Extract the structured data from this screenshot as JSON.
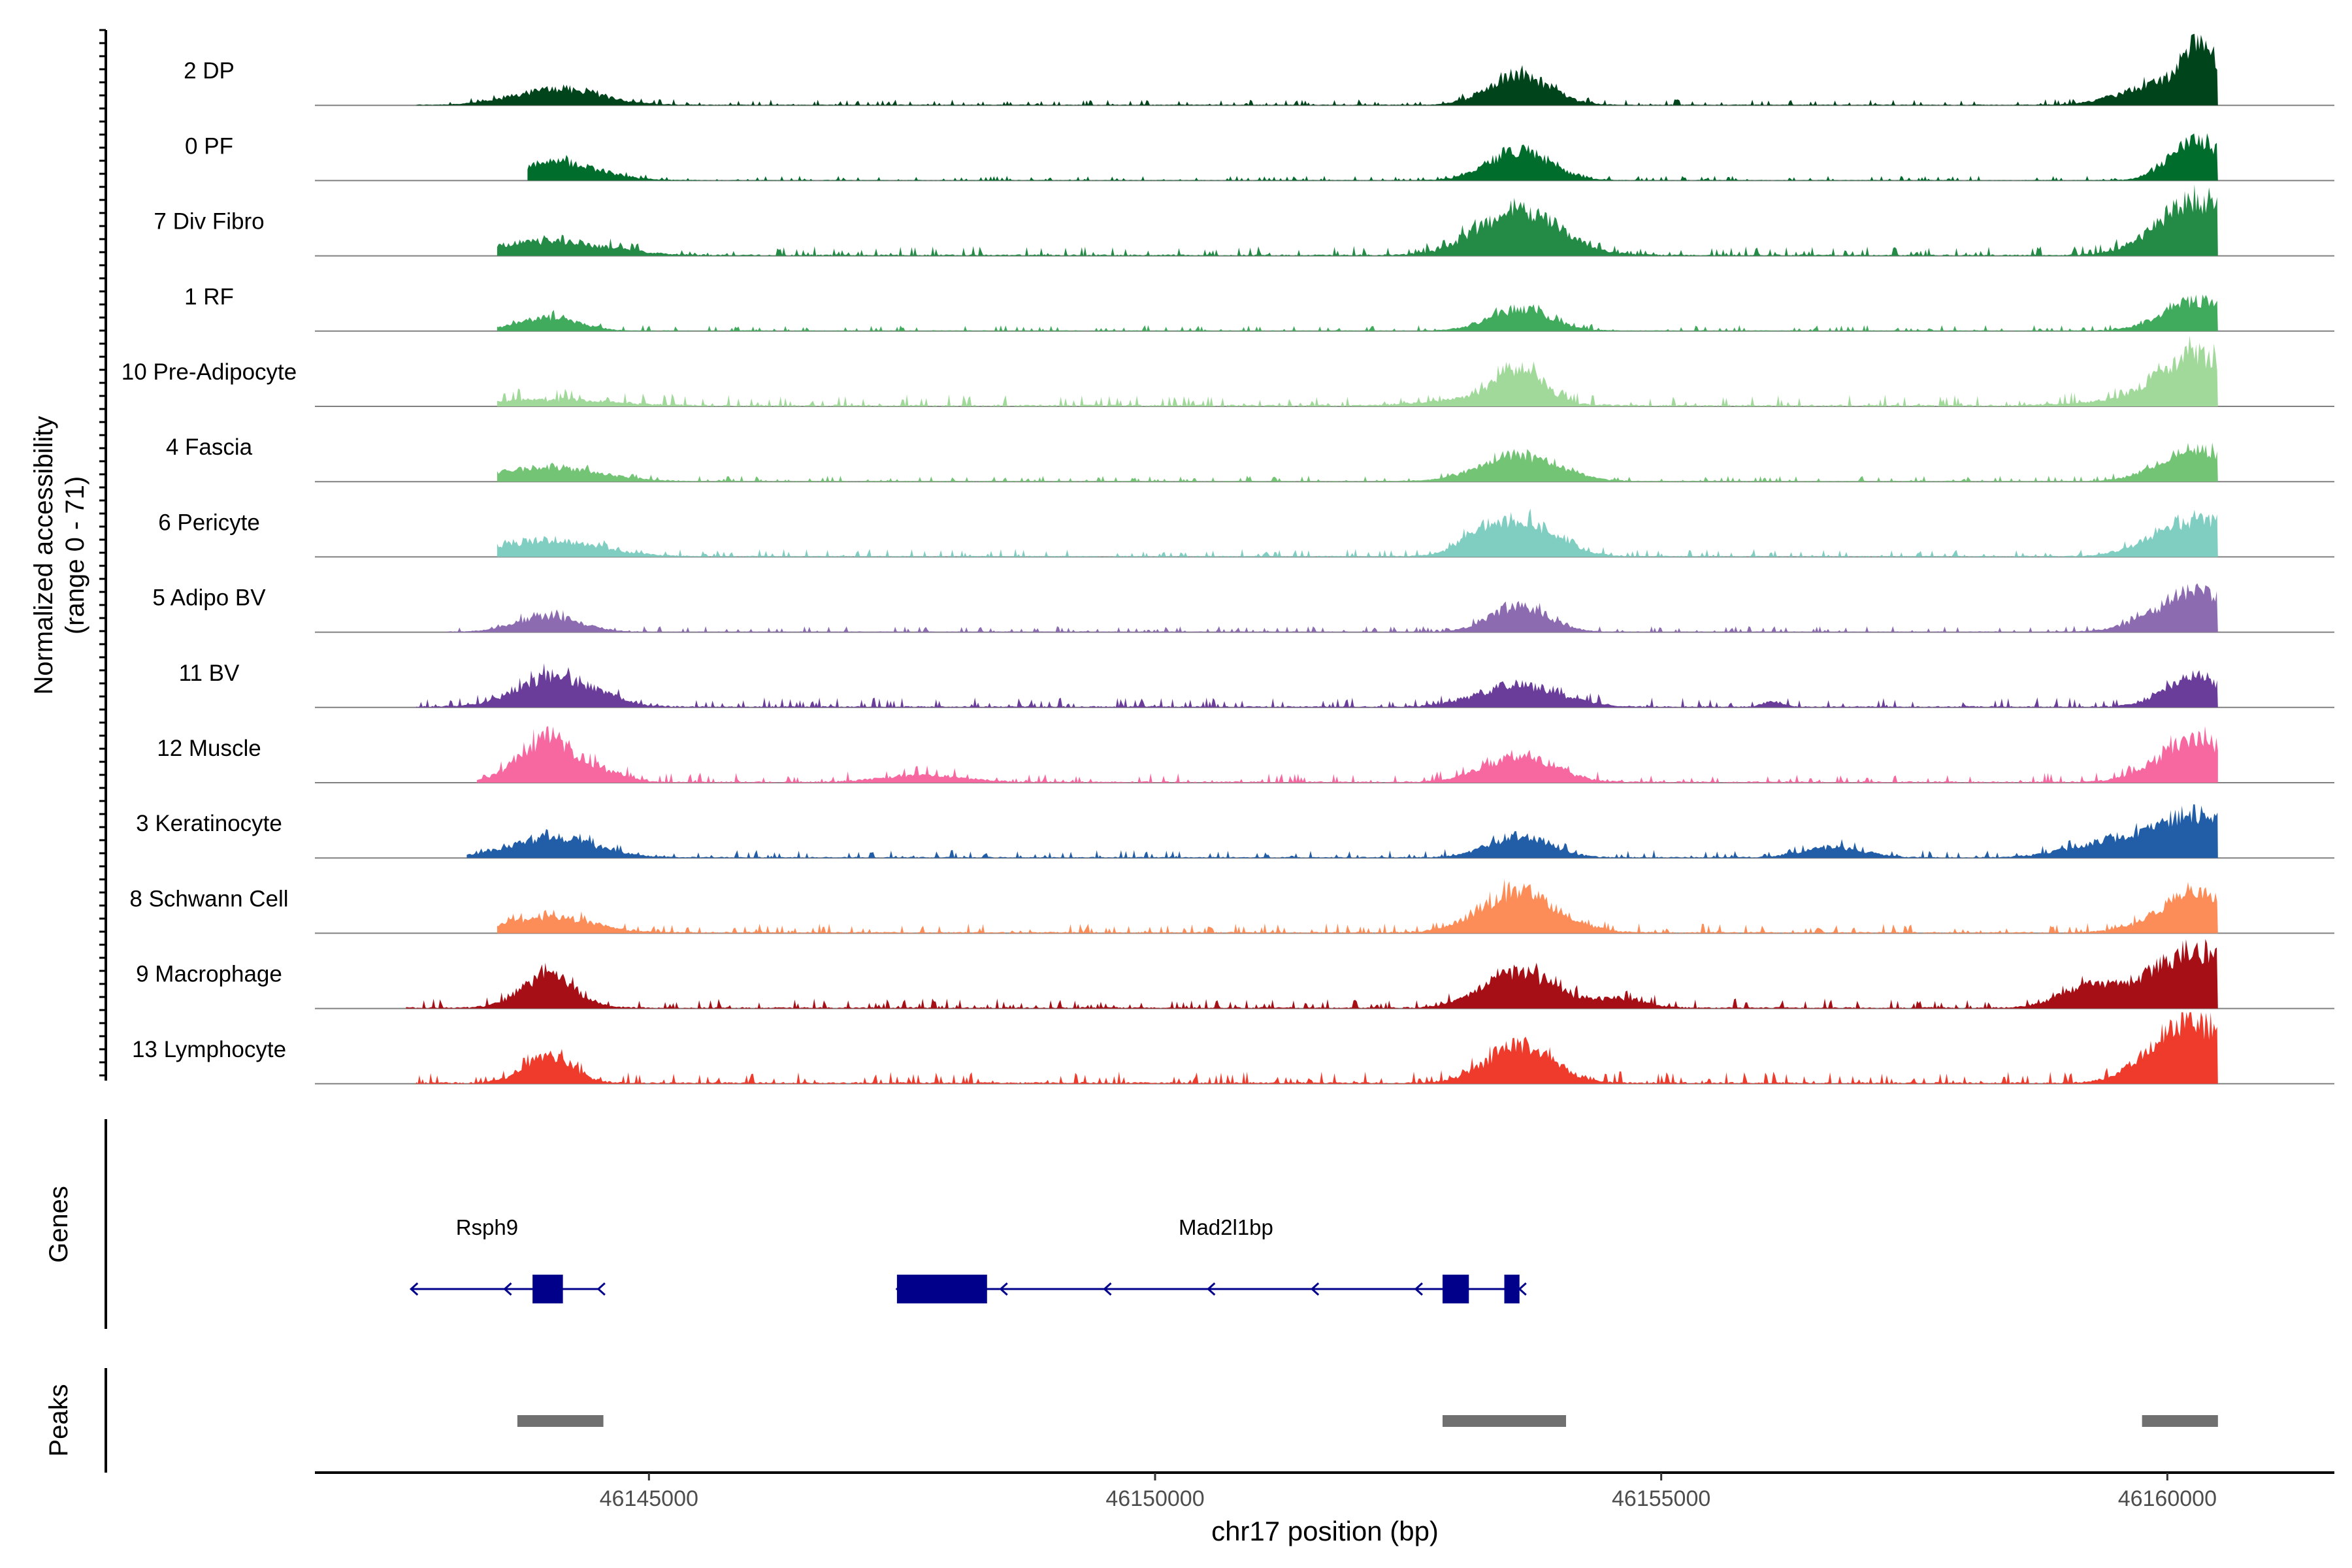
{
  "chart_data": {
    "type": "area",
    "title": "",
    "chromosome": "chr17",
    "xlabel": "chr17 position (bp)",
    "ylabel_line1": "Normalized accessibility",
    "ylabel_line2": "(range 0 - 71)",
    "y_range": [
      0,
      71
    ],
    "x_range": [
      46141700,
      46161650
    ],
    "x_ticks": [
      46145000,
      46150000,
      46155000,
      46160000
    ],
    "x_tick_labels": [
      "46145000",
      "46150000",
      "46155000",
      "46160000"
    ],
    "region_end": 46160500,
    "tracks": [
      {
        "name": "2 DP",
        "color": "#00441b",
        "peaks": [
          [
            46144100,
            16,
            420
          ],
          [
            46153600,
            30,
            300
          ],
          [
            46160050,
            24,
            420
          ],
          [
            46160350,
            42,
            160
          ]
        ],
        "background": [
          [
            46142700,
            46160500,
            1.5
          ]
        ]
      },
      {
        "name": "0 PF",
        "color": "#006d2c",
        "peaks": [
          [
            46144100,
            18,
            400
          ],
          [
            46153600,
            30,
            300
          ],
          [
            46160300,
            40,
            260
          ]
        ],
        "background": [
          [
            46143800,
            46160500,
            1.2
          ]
        ]
      },
      {
        "name": "7 Div Fibro",
        "color": "#238b45",
        "peaks": [
          [
            46144000,
            14,
            560
          ],
          [
            46153600,
            45,
            400
          ],
          [
            46160300,
            55,
            380
          ]
        ],
        "background": [
          [
            46143500,
            46160500,
            2.5
          ]
        ]
      },
      {
        "name": "1 RF",
        "color": "#41ab5d",
        "peaks": [
          [
            46144000,
            13,
            300
          ],
          [
            46153600,
            22,
            300
          ],
          [
            46160300,
            30,
            330
          ]
        ],
        "background": [
          [
            46143500,
            46160500,
            1.5
          ]
        ]
      },
      {
        "name": "10 Pre-Adipocyte",
        "color": "#a1d99b",
        "peaks": [
          [
            46144000,
            6,
            600
          ],
          [
            46153300,
            8,
            500
          ],
          [
            46153600,
            32,
            220
          ],
          [
            46159700,
            5,
            500
          ],
          [
            46160300,
            48,
            360
          ]
        ],
        "background": [
          [
            46143500,
            46160500,
            3
          ]
        ]
      },
      {
        "name": "4 Fascia",
        "color": "#74c476",
        "peaks": [
          [
            46144000,
            14,
            500
          ],
          [
            46153600,
            26,
            380
          ],
          [
            46160300,
            32,
            360
          ]
        ],
        "background": [
          [
            46143500,
            46160500,
            1.5
          ]
        ]
      },
      {
        "name": "6 Pericyte",
        "color": "#80cdc1",
        "peaks": [
          [
            46144000,
            16,
            500
          ],
          [
            46153200,
            10,
            200
          ],
          [
            46153600,
            36,
            350
          ],
          [
            46160300,
            38,
            400
          ]
        ],
        "background": [
          [
            46143500,
            46160500,
            2
          ]
        ]
      },
      {
        "name": "5 Adipo BV",
        "color": "#8c6bb1",
        "peaks": [
          [
            46144000,
            16,
            300
          ],
          [
            46153600,
            26,
            280
          ],
          [
            46160300,
            40,
            400
          ]
        ],
        "background": [
          [
            46143000,
            46160500,
            1.5
          ]
        ]
      },
      {
        "name": "11 BV",
        "color": "#6a3d9a",
        "peaks": [
          [
            46144100,
            30,
            380
          ],
          [
            46153600,
            22,
            400
          ],
          [
            46156100,
            5,
            100
          ],
          [
            46160300,
            30,
            300
          ]
        ],
        "background": [
          [
            46142700,
            46160500,
            2.5
          ]
        ]
      },
      {
        "name": "12 Muscle",
        "color": "#f768a1",
        "peaks": [
          [
            46144000,
            44,
            280
          ],
          [
            46144600,
            8,
            200
          ],
          [
            46147700,
            7,
            400
          ],
          [
            46153600,
            26,
            350
          ],
          [
            46160300,
            42,
            370
          ]
        ],
        "background": [
          [
            46143300,
            46160500,
            2.5
          ]
        ]
      },
      {
        "name": "3 Keratinocyte",
        "color": "#225ea8",
        "peaks": [
          [
            46144050,
            20,
            420
          ],
          [
            46153600,
            22,
            300
          ],
          [
            46156700,
            10,
            300
          ],
          [
            46159400,
            14,
            400
          ],
          [
            46160300,
            42,
            420
          ]
        ],
        "background": [
          [
            46143200,
            46160500,
            2
          ]
        ]
      },
      {
        "name": "8 Schwann Cell",
        "color": "#fc8d59",
        "peaks": [
          [
            46144000,
            16,
            420
          ],
          [
            46153600,
            40,
            380
          ],
          [
            46160300,
            38,
            380
          ]
        ],
        "background": [
          [
            46143500,
            46160500,
            2.5
          ]
        ]
      },
      {
        "name": "9 Macrophage",
        "color": "#a50f15",
        "peaks": [
          [
            46144000,
            32,
            260
          ],
          [
            46153600,
            36,
            350
          ],
          [
            46154600,
            9,
            250
          ],
          [
            46159200,
            18,
            280
          ],
          [
            46159700,
            10,
            320
          ],
          [
            46160300,
            55,
            380
          ]
        ],
        "background": [
          [
            46142600,
            46160500,
            2.5
          ]
        ]
      },
      {
        "name": "13 Lymphocyte",
        "color": "#ef3b2c",
        "peaks": [
          [
            46144000,
            26,
            240
          ],
          [
            46153600,
            38,
            320
          ],
          [
            46160300,
            55,
            380
          ],
          [
            46159900,
            10,
            300
          ]
        ],
        "background": [
          [
            46142700,
            46160500,
            3
          ]
        ]
      }
    ],
    "genes_label": "Genes",
    "genes": [
      {
        "name": "Rsph9",
        "strand": "-",
        "start": 46142650,
        "end": 46144500,
        "exons": [
          [
            46143850,
            46144150
          ]
        ]
      },
      {
        "name": "Mad2l1bp",
        "strand": "-",
        "start": 46147450,
        "end": 46153600,
        "exons": [
          [
            46147450,
            46148340
          ],
          [
            46152840,
            46153100
          ],
          [
            46153450,
            46153600
          ]
        ]
      }
    ],
    "peaks_label": "Peaks",
    "peaks": [
      [
        46143700,
        46144550
      ],
      [
        46152840,
        46154060
      ],
      [
        46159750,
        46160500
      ]
    ]
  }
}
